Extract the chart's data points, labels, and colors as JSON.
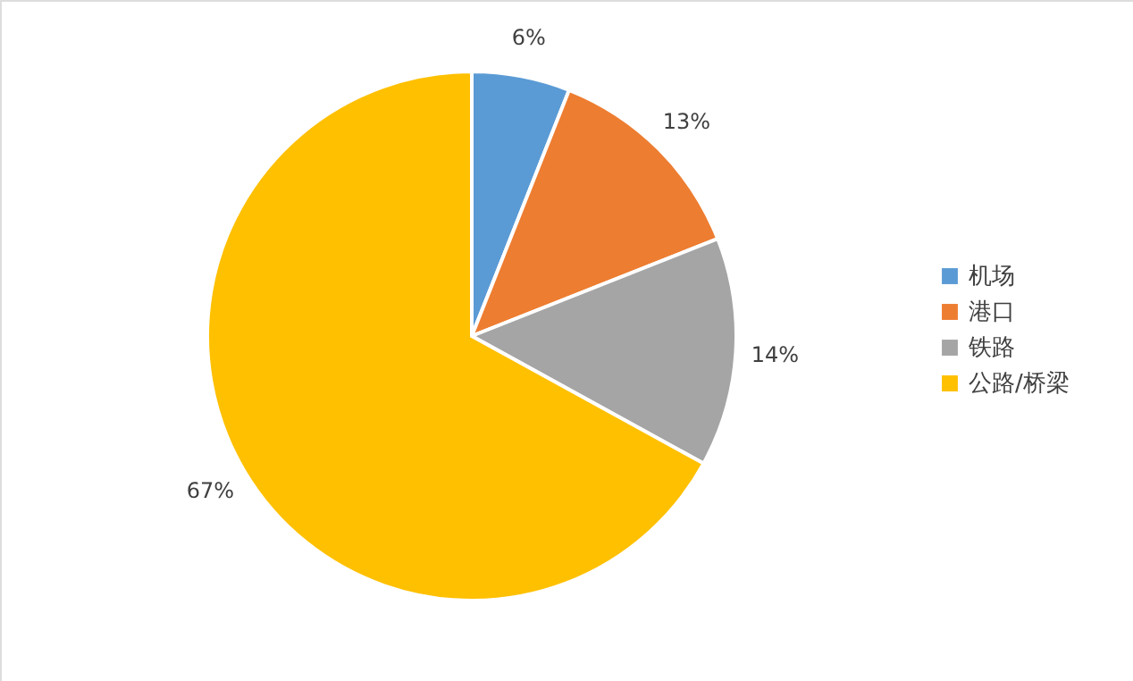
{
  "chart_data": {
    "type": "pie",
    "categories": [
      "机场",
      "港口",
      "铁路",
      "公路/桥梁"
    ],
    "values": [
      6,
      13,
      14,
      67
    ],
    "colors": [
      "#5b9bd5",
      "#ed7d31",
      "#a5a5a5",
      "#ffc000"
    ],
    "value_labels": [
      "6%",
      "13%",
      "14%",
      "67%"
    ],
    "legend": "right"
  }
}
